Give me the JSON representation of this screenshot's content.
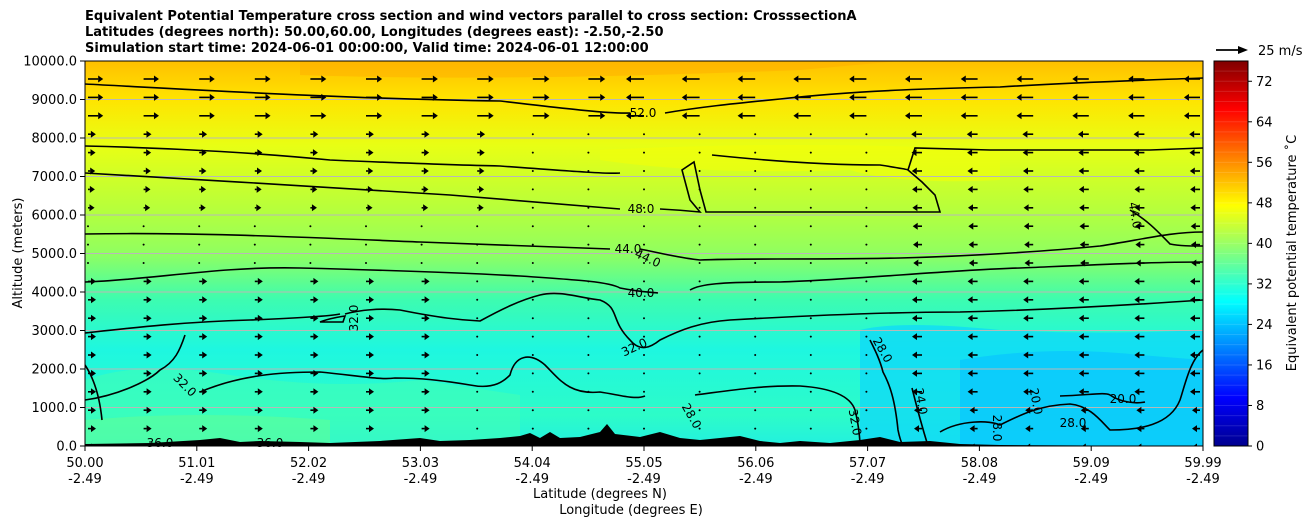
{
  "title_lines": [
    "Equivalent Potential Temperature cross section and wind vectors parallel to cross section: CrosssectionA",
    "Latitudes (degrees north): 50.00,60.00, Longitudes (degrees east): -2.50,-2.50",
    "Simulation start time: 2024-06-01 00:00:00, Valid time: 2024-06-01 12:00:00"
  ],
  "chart_data": {
    "type": "heatmap",
    "ylabel": "Altitude (meters)",
    "xlabel_lines": [
      "Latitude (degrees N)",
      "Longitude (degrees E)"
    ],
    "ylim": [
      0,
      10000
    ],
    "y_ticks": [
      "0.0",
      "1000.0",
      "2000.0",
      "3000.0",
      "4000.0",
      "5000.0",
      "6000.0",
      "7000.0",
      "8000.0",
      "9000.0",
      "10000.0"
    ],
    "x_ticks": [
      {
        "lat": "50.00",
        "lon": "-2.49"
      },
      {
        "lat": "51.01",
        "lon": "-2.49"
      },
      {
        "lat": "52.02",
        "lon": "-2.49"
      },
      {
        "lat": "53.03",
        "lon": "-2.49"
      },
      {
        "lat": "54.04",
        "lon": "-2.49"
      },
      {
        "lat": "55.05",
        "lon": "-2.49"
      },
      {
        "lat": "56.06",
        "lon": "-2.49"
      },
      {
        "lat": "57.07",
        "lon": "-2.49"
      },
      {
        "lat": "58.08",
        "lon": "-2.49"
      },
      {
        "lat": "59.09",
        "lon": "-2.49"
      },
      {
        "lat": "59.99",
        "lon": "-2.49"
      }
    ],
    "grid": "horizontal",
    "colorbar": {
      "label": "Equivalent potential temperature ˚C",
      "range": [
        0,
        76
      ],
      "ticks": [
        "0",
        "8",
        "16",
        "24",
        "32",
        "40",
        "48",
        "56",
        "64",
        "72"
      ],
      "colormap": "jet"
    },
    "quiver_key": {
      "label": "25 m/s"
    },
    "contour_labels": [
      "52.0",
      "48.0",
      "44.0",
      "44.0",
      "40.0",
      "32.0",
      "32.0",
      "32.0",
      "28.0",
      "28.0",
      "24.0",
      "20.0",
      "20.0",
      "28.0",
      "28.0",
      "36.0",
      "36.0",
      "32.0",
      "44.0"
    ],
    "theta_e_profile": [
      {
        "altitude": 0,
        "value": 36
      },
      {
        "altitude": 1000,
        "value": 34
      },
      {
        "altitude": 2000,
        "value": 33
      },
      {
        "altitude": 3000,
        "value": 34
      },
      {
        "altitude": 4000,
        "value": 40
      },
      {
        "altitude": 5000,
        "value": 44
      },
      {
        "altitude": 6000,
        "value": 47
      },
      {
        "altitude": 7000,
        "value": 49
      },
      {
        "altitude": 8000,
        "value": 51
      },
      {
        "altitude": 9000,
        "value": 53
      },
      {
        "altitude": 10000,
        "value": 56
      }
    ]
  }
}
